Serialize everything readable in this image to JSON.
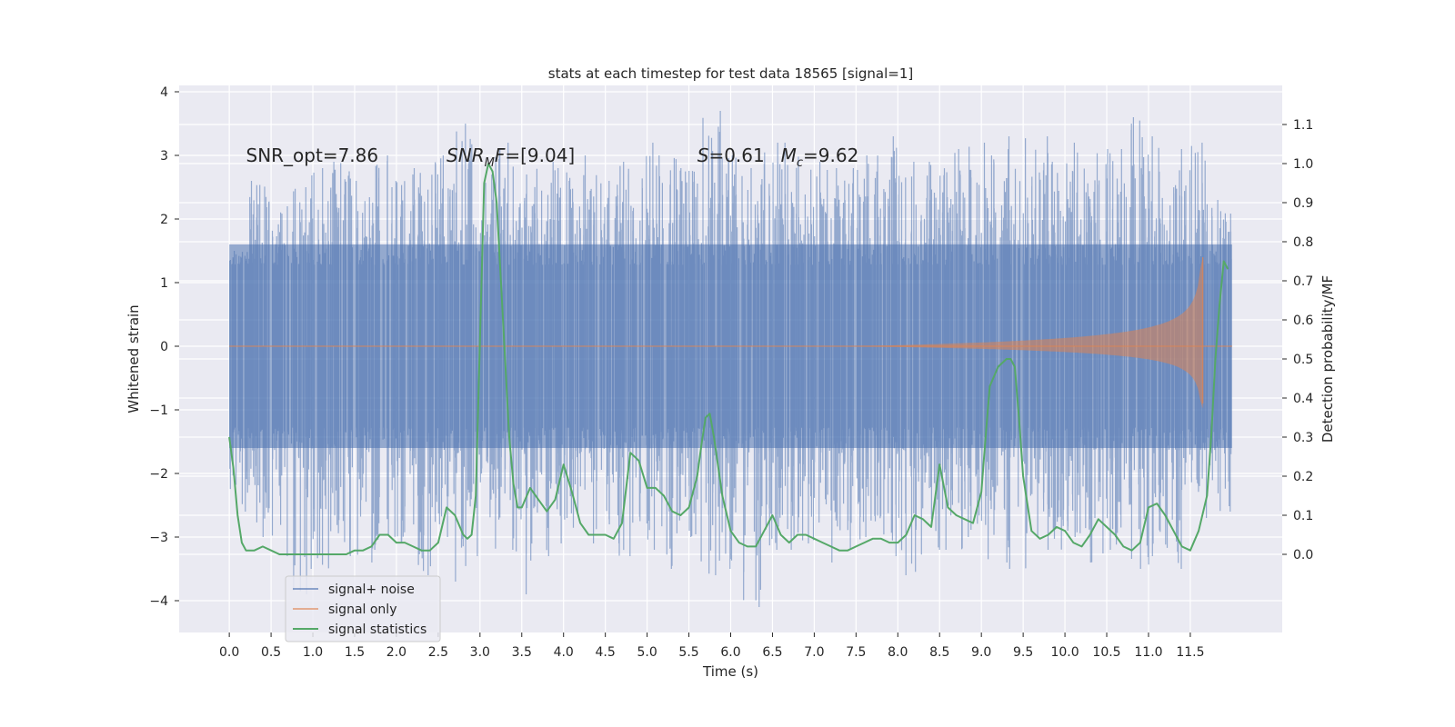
{
  "chart_data": {
    "type": "line",
    "title": "stats at each timestep for test data 18565 [signal=1]",
    "xlabel": "Time (s)",
    "ylabel": "Whitened strain",
    "y2label": "Detection probability/MF",
    "xlim": [
      -0.6,
      12.6
    ],
    "ylim": [
      -4.5,
      4.1
    ],
    "y2lim": [
      -0.2,
      1.2
    ],
    "xticks": [
      0.0,
      0.5,
      1.0,
      1.5,
      2.0,
      2.5,
      3.0,
      3.5,
      4.0,
      4.5,
      5.0,
      5.5,
      6.0,
      6.5,
      7.0,
      7.5,
      8.0,
      8.5,
      9.0,
      9.5,
      10.0,
      10.5,
      11.0,
      11.5
    ],
    "xtick_labels": [
      "0.0",
      "0.5",
      "1.0",
      "1.5",
      "2.0",
      "2.5",
      "3.0",
      "3.5",
      "4.0",
      "4.5",
      "5.0",
      "5.5",
      "6.0",
      "6.5",
      "7.0",
      "7.5",
      "8.0",
      "8.5",
      "9.0",
      "9.5",
      "10.0",
      "10.5",
      "11.0",
      "11.5"
    ],
    "yticks": [
      -4,
      -3,
      -2,
      -1,
      0,
      1,
      2,
      3,
      4
    ],
    "ytick_labels": [
      "−4",
      "−3",
      "−2",
      "−1",
      "0",
      "1",
      "2",
      "3",
      "4"
    ],
    "y2ticks": [
      0.0,
      0.1,
      0.2,
      0.3,
      0.4,
      0.5,
      0.6,
      0.7,
      0.8,
      0.9,
      1.0,
      1.1
    ],
    "y2tick_labels": [
      "0.0",
      "0.1",
      "0.2",
      "0.3",
      "0.4",
      "0.5",
      "0.6",
      "0.7",
      "0.8",
      "0.9",
      "1.0",
      "1.1"
    ],
    "grid": true,
    "legend_position": "lower-left",
    "annotations": [
      {
        "text": "SNR_opt=7.86",
        "x": 0.2,
        "y": 2.9
      },
      {
        "text": "SNR",
        "sub": "M",
        "rest": "F=[9.04]",
        "x": 2.6,
        "y": 2.9
      },
      {
        "text": "S",
        "rest": "=0.61",
        "x": 5.6,
        "y": 2.9
      },
      {
        "text": "M",
        "sub": "c",
        "rest": "=9.62",
        "x": 6.6,
        "y": 2.9
      }
    ],
    "series": [
      {
        "name": "signal+ noise",
        "color": "#4c72b0",
        "axis": "left",
        "t_start": 0.0,
        "t_end": 12.0,
        "envelope_max": [
          1.5,
          2.6,
          2.2,
          2.5,
          2.8,
          2.9,
          2.6,
          3.0,
          2.7,
          2.8,
          3.0,
          3.5,
          2.7,
          3.2,
          2.7,
          2.9,
          2.8,
          3.0,
          2.6,
          2.9,
          3.2,
          3.0,
          2.8,
          3.7,
          3.0,
          2.8,
          3.2,
          3.2,
          2.9,
          2.8,
          2.8,
          3.0,
          3.3,
          2.9,
          2.9,
          3.1,
          3.2,
          3.0,
          3.3,
          3.3,
          2.9,
          3.2,
          3.1,
          3.1,
          3.6,
          3.3,
          3.1,
          3.2,
          2.3
        ],
        "envelope_min": [
          -2.6,
          -3.0,
          -3.3,
          -3.9,
          -3.5,
          -3.3,
          -3.4,
          -3.2,
          -3.1,
          -3.6,
          -3.0,
          -3.7,
          -3.3,
          -3.2,
          -3.9,
          -3.3,
          -3.1,
          -3.1,
          -2.8,
          -3.3,
          -3.2,
          -3.5,
          -3.0,
          -3.6,
          -3.5,
          -4.1,
          -3.2,
          -3.2,
          -3.1,
          -3.4,
          -3.2,
          -3.0,
          -3.3,
          -3.6,
          -3.2,
          -3.2,
          -3.0,
          -3.4,
          -3.5,
          -3.0,
          -3.2,
          -3.0,
          -3.4,
          -3.2,
          -3.5,
          -3.3,
          -3.5,
          -2.7,
          -2.6
        ],
        "core_amplitude": 1.6
      },
      {
        "name": "signal only",
        "color": "#dd8452",
        "axis": "left",
        "t_start": 0.0,
        "t_end": 12.0,
        "chirp_start": 7.5,
        "merger_time": 11.65,
        "peak_amplitude": 1.4
      },
      {
        "name": "signal statistics",
        "color": "#55a868",
        "axis": "right",
        "x": [
          0.0,
          0.05,
          0.1,
          0.15,
          0.2,
          0.25,
          0.3,
          0.4,
          0.5,
          0.6,
          0.7,
          0.8,
          0.9,
          1.0,
          1.1,
          1.2,
          1.3,
          1.4,
          1.5,
          1.6,
          1.7,
          1.8,
          1.9,
          2.0,
          2.1,
          2.2,
          2.3,
          2.4,
          2.5,
          2.6,
          2.7,
          2.8,
          2.85,
          2.9,
          2.95,
          3.0,
          3.05,
          3.1,
          3.15,
          3.2,
          3.25,
          3.3,
          3.35,
          3.4,
          3.45,
          3.5,
          3.6,
          3.7,
          3.8,
          3.9,
          4.0,
          4.1,
          4.2,
          4.3,
          4.4,
          4.5,
          4.6,
          4.7,
          4.8,
          4.9,
          5.0,
          5.1,
          5.2,
          5.3,
          5.4,
          5.5,
          5.6,
          5.65,
          5.7,
          5.75,
          5.8,
          5.9,
          6.0,
          6.1,
          6.2,
          6.3,
          6.4,
          6.5,
          6.6,
          6.7,
          6.8,
          6.9,
          7.0,
          7.1,
          7.2,
          7.3,
          7.4,
          7.5,
          7.6,
          7.7,
          7.8,
          7.9,
          8.0,
          8.1,
          8.2,
          8.3,
          8.4,
          8.5,
          8.6,
          8.7,
          8.8,
          8.9,
          9.0,
          9.05,
          9.1,
          9.2,
          9.3,
          9.35,
          9.4,
          9.45,
          9.5,
          9.6,
          9.7,
          9.8,
          9.9,
          10.0,
          10.1,
          10.2,
          10.3,
          10.4,
          10.5,
          10.6,
          10.7,
          10.8,
          10.9,
          11.0,
          11.1,
          11.2,
          11.3,
          11.4,
          11.5,
          11.6,
          11.7,
          11.75,
          11.8,
          11.85,
          11.9,
          11.95
        ],
        "values": [
          0.3,
          0.22,
          0.1,
          0.03,
          0.01,
          0.01,
          0.01,
          0.02,
          0.01,
          0.0,
          0.0,
          0.0,
          0.0,
          0.0,
          0.0,
          0.0,
          0.0,
          0.0,
          0.01,
          0.01,
          0.02,
          0.05,
          0.05,
          0.03,
          0.03,
          0.02,
          0.01,
          0.01,
          0.03,
          0.12,
          0.1,
          0.05,
          0.04,
          0.05,
          0.15,
          0.55,
          0.95,
          1.0,
          0.98,
          0.9,
          0.7,
          0.5,
          0.3,
          0.18,
          0.12,
          0.12,
          0.17,
          0.14,
          0.11,
          0.14,
          0.23,
          0.16,
          0.08,
          0.05,
          0.05,
          0.05,
          0.04,
          0.08,
          0.26,
          0.24,
          0.17,
          0.17,
          0.15,
          0.11,
          0.1,
          0.12,
          0.2,
          0.28,
          0.35,
          0.36,
          0.3,
          0.15,
          0.06,
          0.03,
          0.02,
          0.02,
          0.06,
          0.1,
          0.05,
          0.03,
          0.05,
          0.05,
          0.04,
          0.03,
          0.02,
          0.01,
          0.01,
          0.02,
          0.03,
          0.04,
          0.04,
          0.03,
          0.03,
          0.05,
          0.1,
          0.09,
          0.07,
          0.23,
          0.12,
          0.1,
          0.09,
          0.08,
          0.16,
          0.3,
          0.43,
          0.48,
          0.5,
          0.5,
          0.48,
          0.35,
          0.2,
          0.06,
          0.04,
          0.05,
          0.07,
          0.06,
          0.03,
          0.02,
          0.05,
          0.09,
          0.07,
          0.05,
          0.02,
          0.01,
          0.03,
          0.12,
          0.13,
          0.1,
          0.06,
          0.02,
          0.01,
          0.06,
          0.15,
          0.3,
          0.5,
          0.64,
          0.75,
          0.73
        ]
      }
    ]
  }
}
